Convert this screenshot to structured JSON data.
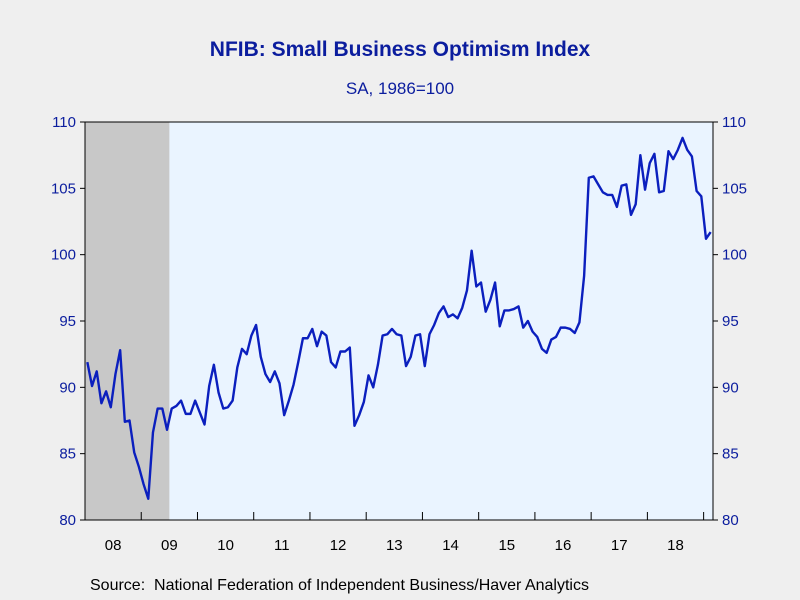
{
  "chart_data": {
    "type": "line",
    "title": "NFIB: Small Business Optimism Index",
    "subtitle": "SA, 1986=100",
    "source": "Source:  National Federation of Independent Business/Haver Analytics",
    "ylim": [
      80,
      110
    ],
    "yticks": [
      80,
      85,
      90,
      95,
      100,
      105,
      110
    ],
    "x_tick_labels": [
      "08",
      "09",
      "10",
      "11",
      "12",
      "13",
      "14",
      "15",
      "16",
      "17",
      "18"
    ],
    "x_start": "2008-01",
    "recession": {
      "start": "2008-01",
      "end": "2009-06"
    },
    "grid": false,
    "colors": {
      "line": "#0b1fbe",
      "text": "#0b1d9e",
      "plot_bg": "#eaf4ff",
      "recession": "#c8c8c8"
    },
    "series": [
      {
        "values": [
          91.9,
          90.1,
          91.2,
          88.8,
          89.7,
          88.5,
          91.0,
          92.8,
          87.4,
          87.5,
          85.1,
          84.0,
          82.7,
          81.6,
          86.6,
          88.4,
          88.4,
          86.8,
          88.4,
          88.6,
          89.0,
          88.0,
          88.0,
          89.0,
          88.1,
          87.2,
          90.1,
          91.7,
          89.6,
          88.4,
          88.5,
          89.0,
          91.5,
          92.9,
          92.5,
          93.9,
          94.7,
          92.3,
          91.0,
          90.4,
          91.2,
          90.3,
          87.9,
          89.0,
          90.2,
          91.9,
          93.7,
          93.7,
          94.4,
          93.1,
          94.2,
          93.9,
          91.9,
          91.5,
          92.7,
          92.7,
          93.0,
          87.1,
          87.9,
          88.9,
          90.9,
          90.0,
          91.7,
          93.9,
          94.0,
          94.4,
          94.0,
          93.9,
          91.6,
          92.3,
          93.9,
          94.0,
          91.6,
          94.0,
          94.7,
          95.6,
          96.1,
          95.3,
          95.5,
          95.2,
          96.0,
          97.3,
          100.3,
          97.6,
          97.9,
          95.7,
          96.6,
          97.9,
          94.6,
          95.8,
          95.8,
          95.9,
          96.1,
          94.5,
          95.0,
          94.2,
          93.8,
          92.9,
          92.6,
          93.6,
          93.8,
          94.5,
          94.5,
          94.4,
          94.1,
          94.9,
          98.4,
          105.8,
          105.9,
          105.3,
          104.7,
          104.5,
          104.5,
          103.6,
          105.2,
          105.3,
          103.0,
          103.8,
          107.5,
          104.9,
          106.9,
          107.6,
          104.7,
          104.8,
          107.8,
          107.2,
          107.9,
          108.8,
          107.9,
          107.4,
          104.8,
          104.4,
          101.2,
          101.7
        ]
      }
    ]
  }
}
